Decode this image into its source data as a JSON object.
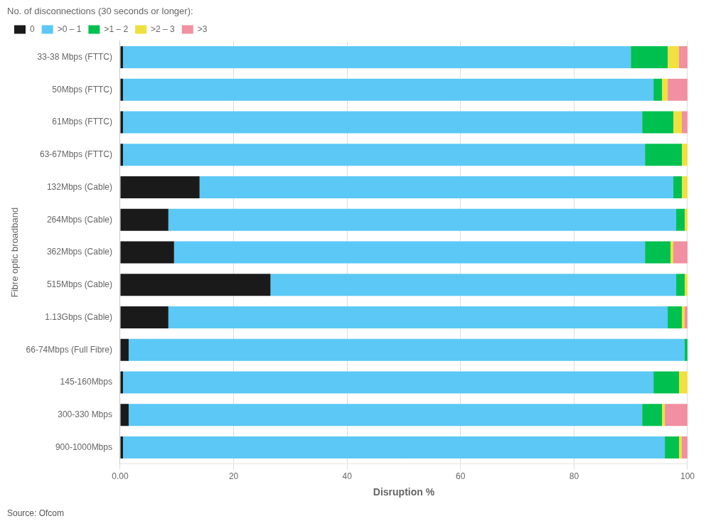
{
  "chart_data": {
    "type": "bar",
    "orientation": "horizontal",
    "stacked": true,
    "categories": [
      "33-38 Mbps (FTTC)",
      "50Mbps (FTTC)",
      "61Mbps (FTTC)",
      "63-67Mbps (FTTC)",
      "132Mbps (Cable)",
      "264Mbps (Cable)",
      "362Mbps (Cable)",
      "515Mbps (Cable)",
      "1.13Gbps (Cable)",
      "66-74Mbps (Full Fibre)",
      "145-160Mbps",
      "300-330 Mbps",
      "900-1000Mbps"
    ],
    "series": [
      {
        "name": "0",
        "color": "#1a1a1a",
        "values": [
          0.5,
          0.5,
          0.5,
          0.5,
          14.0,
          8.5,
          9.5,
          26.5,
          8.5,
          1.5,
          0.5,
          1.5,
          0.5
        ]
      },
      {
        "name": ">0 – 1",
        "color": "#5bc8f5",
        "values": [
          89.5,
          93.5,
          91.5,
          92.0,
          83.5,
          89.5,
          83.0,
          71.5,
          88.0,
          98.0,
          93.5,
          90.5,
          95.5
        ]
      },
      {
        "name": ">1 – 2",
        "color": "#00c050",
        "values": [
          6.5,
          1.5,
          5.5,
          6.5,
          1.5,
          1.5,
          4.5,
          1.5,
          2.5,
          0.5,
          4.5,
          3.5,
          2.5
        ]
      },
      {
        "name": ">2 – 3",
        "color": "#f0e040",
        "values": [
          2.0,
          1.0,
          1.5,
          1.0,
          1.0,
          0.5,
          0.5,
          0.5,
          0.5,
          0.0,
          1.5,
          0.5,
          0.5
        ]
      },
      {
        "name": ">3",
        "color": "#f090a0",
        "values": [
          1.5,
          3.5,
          1.0,
          0.0,
          0.0,
          0.0,
          2.5,
          0.0,
          0.5,
          0.0,
          0.0,
          4.0,
          1.0
        ]
      }
    ],
    "legend_title": "No. of disconnections (30 seconds or longer):",
    "legend": "upper left",
    "xlabel": "Disruption %",
    "ylabel": "Fibre optic broadband",
    "xlim": [
      0,
      100
    ],
    "xticks": [
      {
        "value": 0,
        "label": "0.00"
      },
      20,
      40,
      60,
      80,
      100
    ],
    "grid": "x",
    "annotations": [
      "Source: Ofcom"
    ]
  }
}
